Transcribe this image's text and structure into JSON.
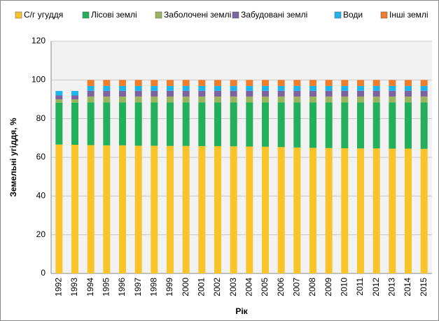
{
  "chart_data": {
    "type": "stacked_bar",
    "x_label": "Рік",
    "y_label": "Земельні угіддя, %",
    "categories": [
      "1992",
      "1993",
      "1994",
      "1995",
      "1996",
      "1997",
      "1998",
      "1999",
      "2000",
      "2001",
      "2002",
      "2003",
      "2004",
      "2005",
      "2006",
      "2007",
      "2008",
      "2009",
      "2010",
      "2011",
      "2012",
      "2013",
      "2014",
      "2015"
    ],
    "series": [
      {
        "name": "С/г угуддя",
        "color": "#f9c32a",
        "values": [
          66.6,
          66.5,
          66.3,
          66.2,
          66.2,
          66.0,
          66.0,
          65.9,
          65.9,
          65.8,
          65.8,
          65.7,
          65.6,
          65.5,
          65.3,
          65.1,
          64.9,
          64.8,
          64.7,
          64.6,
          64.6,
          64.5,
          64.5,
          64.4
        ]
      },
      {
        "name": "Лісові землі",
        "color": "#22b05a",
        "values": [
          21.7,
          21.8,
          22.1,
          22.2,
          22.2,
          22.4,
          22.4,
          22.5,
          22.5,
          22.6,
          22.6,
          22.7,
          22.8,
          22.9,
          23.1,
          23.3,
          23.5,
          23.6,
          23.7,
          23.8,
          23.8,
          23.9,
          23.9,
          24.0
        ]
      },
      {
        "name": "Заболочені землі",
        "color": "#9bb55e",
        "values": [
          1.7,
          1.7,
          3.0,
          3.0,
          3.0,
          3.0,
          3.0,
          3.0,
          3.0,
          3.0,
          3.0,
          3.0,
          3.0,
          3.0,
          3.0,
          3.0,
          3.0,
          3.0,
          3.0,
          3.0,
          3.0,
          3.0,
          3.0,
          3.0
        ]
      },
      {
        "name": "Забудовані землі",
        "color": "#7d64a0",
        "values": [
          2.0,
          2.0,
          3.0,
          3.0,
          3.0,
          3.0,
          3.0,
          3.0,
          3.0,
          3.0,
          3.0,
          3.0,
          3.0,
          3.0,
          3.0,
          3.0,
          3.0,
          3.0,
          3.0,
          3.0,
          3.0,
          3.0,
          3.0,
          3.0
        ]
      },
      {
        "name": "Води",
        "color": "#1eb4ec",
        "values": [
          2.3,
          2.3,
          2.5,
          2.5,
          2.5,
          2.5,
          2.5,
          2.5,
          2.5,
          2.5,
          2.5,
          2.5,
          2.5,
          2.5,
          2.5,
          2.5,
          2.5,
          2.5,
          2.5,
          2.5,
          2.5,
          2.5,
          2.5,
          2.5
        ]
      },
      {
        "name": "Інші землі",
        "color": "#ee7d2c",
        "values": [
          null,
          null,
          3.1,
          3.1,
          3.1,
          3.1,
          3.1,
          3.1,
          3.1,
          3.1,
          3.1,
          3.1,
          3.1,
          3.1,
          3.1,
          3.1,
          3.1,
          3.1,
          3.1,
          3.1,
          3.1,
          3.1,
          3.1,
          3.1
        ]
      }
    ],
    "ylim": [
      0,
      120
    ],
    "yticks": [
      0,
      20,
      40,
      60,
      80,
      100,
      120
    ],
    "grid": true
  }
}
